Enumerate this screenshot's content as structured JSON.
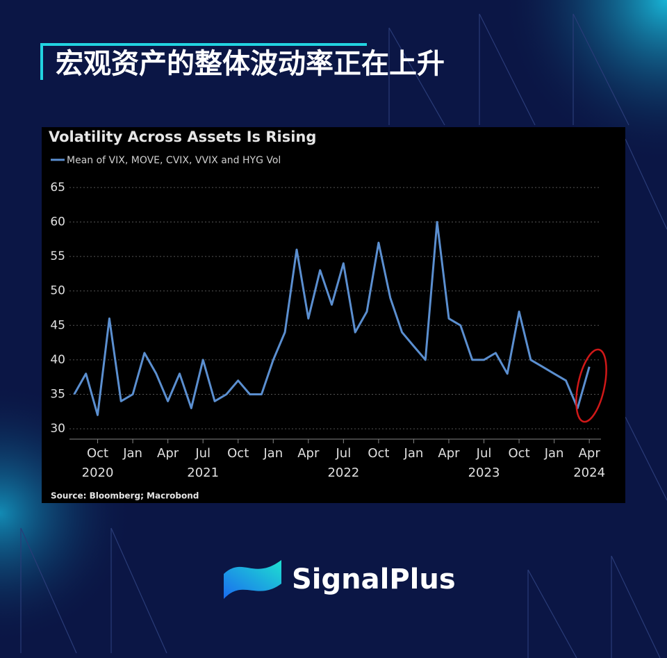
{
  "header": {
    "title": "宏观资产的整体波动率正在上升"
  },
  "brand": {
    "name": "SignalPlus"
  },
  "chart_data": {
    "type": "line",
    "title": "Volatility Across Assets Is Rising",
    "source": "Source: Bloomberg; Macrobond",
    "x": [
      "2020-08",
      "2020-09",
      "2020-10",
      "2020-11",
      "2020-12",
      "2021-01",
      "2021-02",
      "2021-03",
      "2021-04",
      "2021-05",
      "2021-06",
      "2021-07",
      "2021-08",
      "2021-09",
      "2021-10",
      "2021-11",
      "2021-12",
      "2022-01",
      "2022-02",
      "2022-03",
      "2022-04",
      "2022-05",
      "2022-06",
      "2022-07",
      "2022-08",
      "2022-09",
      "2022-10",
      "2022-11",
      "2022-12",
      "2023-01",
      "2023-02",
      "2023-03",
      "2023-04",
      "2023-05",
      "2023-06",
      "2023-07",
      "2023-08",
      "2023-09",
      "2023-10",
      "2023-11",
      "2023-12",
      "2024-01",
      "2024-02",
      "2024-03",
      "2024-04"
    ],
    "series": [
      {
        "name": "Mean of VIX, MOVE, CVIX, VVIX and HYG Vol",
        "color": "#5b8fd0",
        "values": [
          35,
          38,
          32,
          46,
          34,
          35,
          41,
          38,
          34,
          38,
          33,
          40,
          34,
          35,
          37,
          35,
          35,
          40,
          44,
          56,
          46,
          53,
          48,
          54,
          44,
          47,
          57,
          49,
          44,
          42,
          40,
          60,
          46,
          45,
          40,
          40,
          41,
          38,
          47,
          40,
          39,
          38,
          37,
          33,
          39
        ]
      }
    ],
    "xlim": [
      "2020-07",
      "2024-05"
    ],
    "xticks": [
      {
        "value": "2020-10",
        "label": "Oct"
      },
      {
        "value": "2021-01",
        "label": "Jan"
      },
      {
        "value": "2021-04",
        "label": "Apr"
      },
      {
        "value": "2021-07",
        "label": "Jul"
      },
      {
        "value": "2021-10",
        "label": "Oct"
      },
      {
        "value": "2022-01",
        "label": "Jan"
      },
      {
        "value": "2022-04",
        "label": "Apr"
      },
      {
        "value": "2022-07",
        "label": "Jul"
      },
      {
        "value": "2022-10",
        "label": "Oct"
      },
      {
        "value": "2023-01",
        "label": "Jan"
      },
      {
        "value": "2023-04",
        "label": "Apr"
      },
      {
        "value": "2023-07",
        "label": "Jul"
      },
      {
        "value": "2023-10",
        "label": "Oct"
      },
      {
        "value": "2024-01",
        "label": "Jan"
      },
      {
        "value": "2024-04",
        "label": "Apr"
      }
    ],
    "xtick_years": [
      {
        "value": "2020-10",
        "label": "2020"
      },
      {
        "value": "2021-07",
        "label": "2021"
      },
      {
        "value": "2022-07",
        "label": "2022"
      },
      {
        "value": "2023-07",
        "label": "2023"
      },
      {
        "value": "2024-04",
        "label": "2024"
      }
    ],
    "ylim": [
      28.5,
      66.5
    ],
    "yticks": [
      30,
      35,
      40,
      45,
      50,
      55,
      60,
      65
    ],
    "grid": true
  }
}
